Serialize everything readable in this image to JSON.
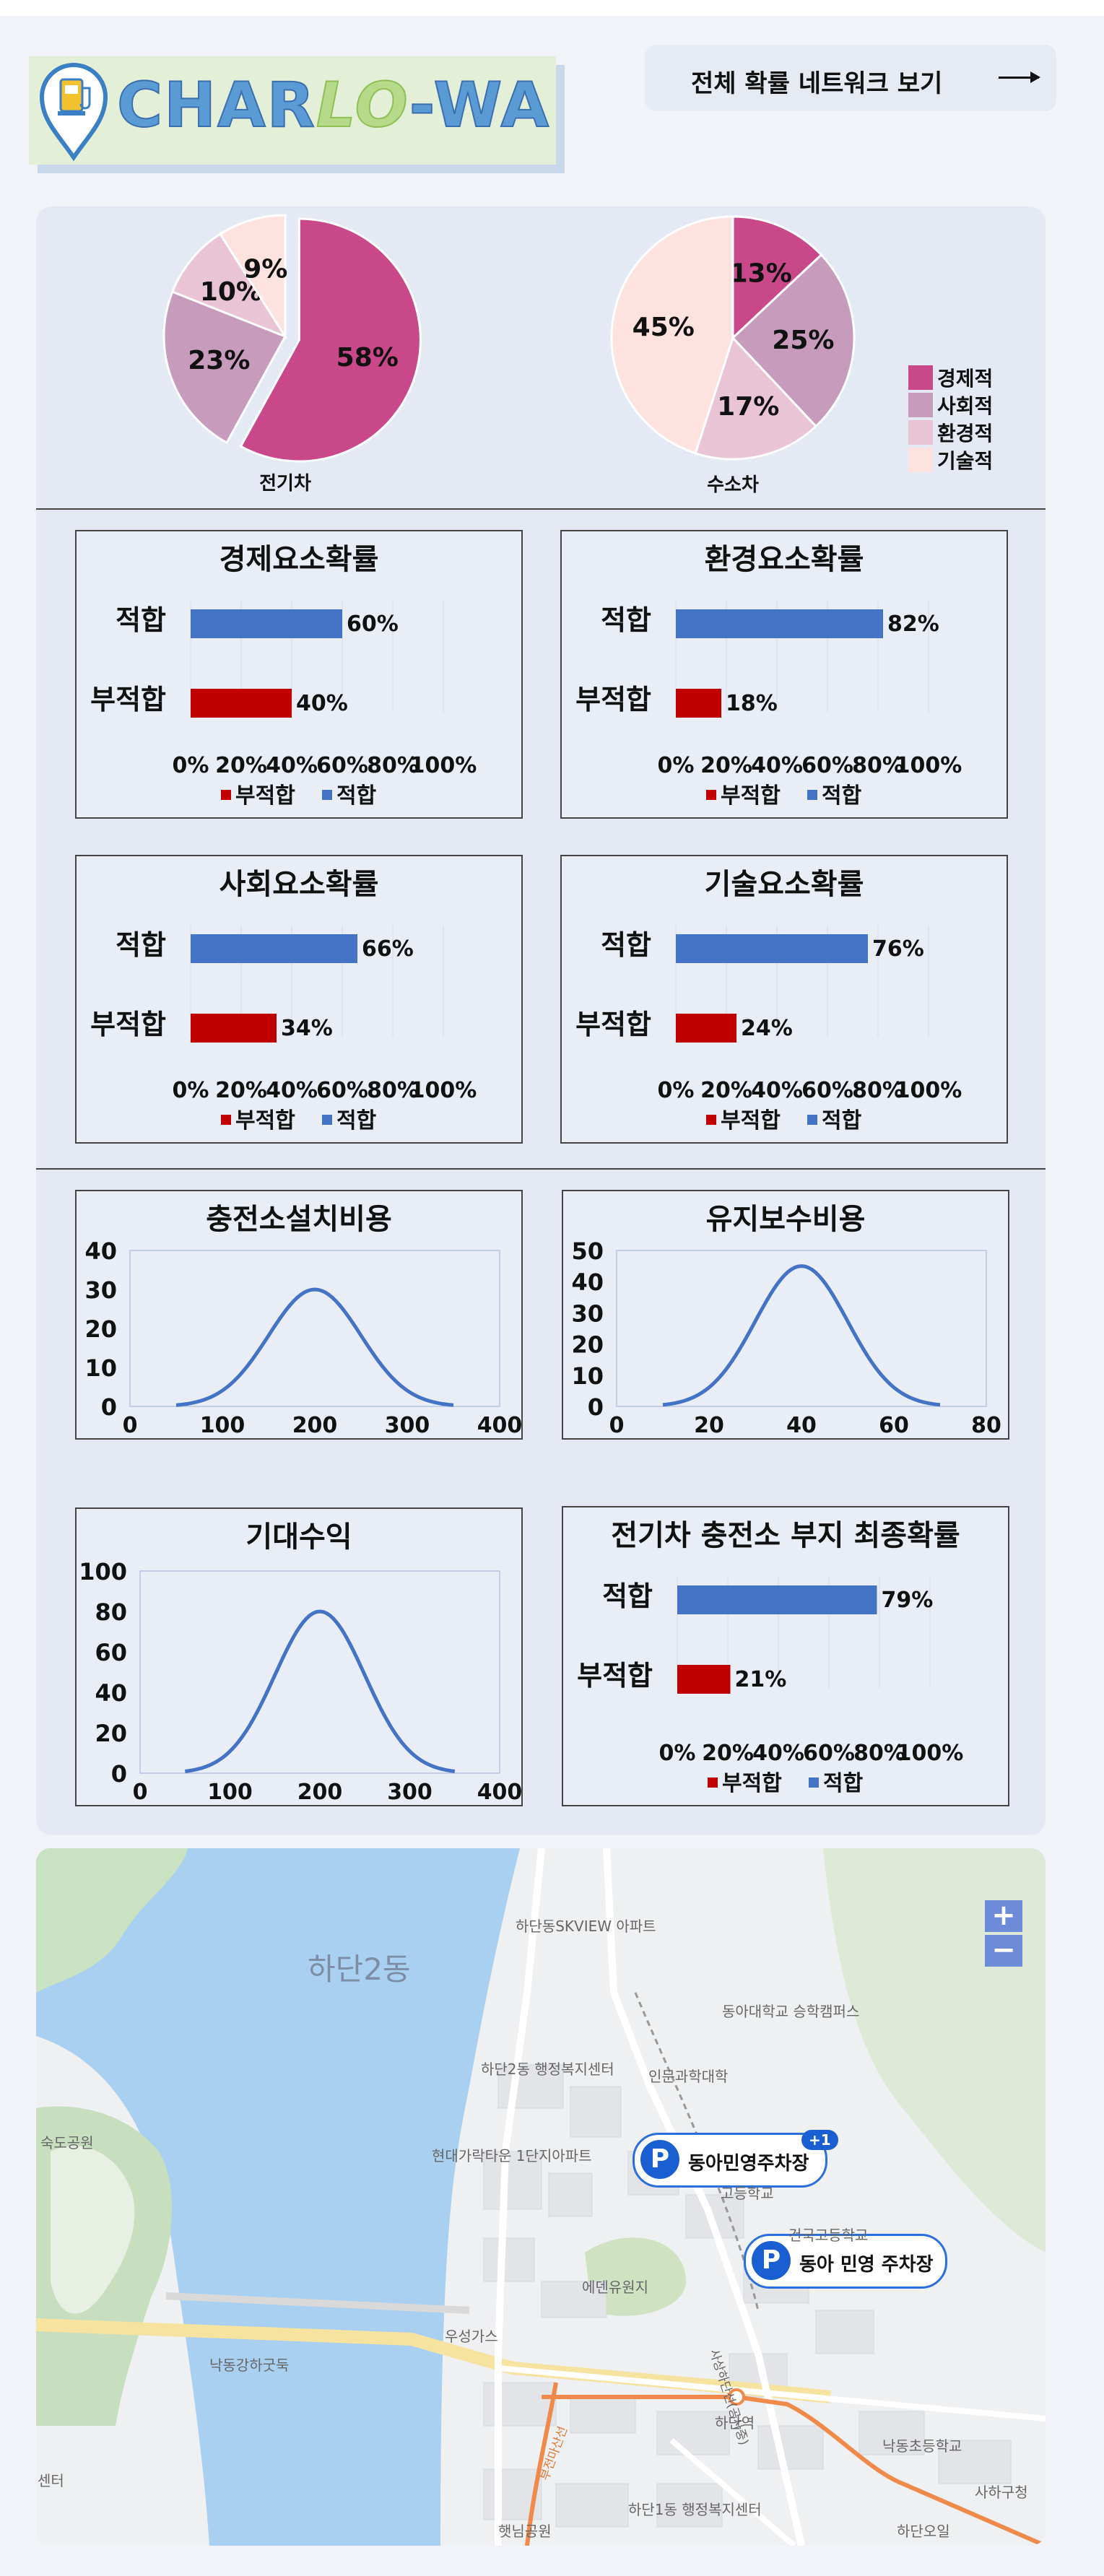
{
  "header": {
    "logo_text_1": "CHAR",
    "logo_text_2": "LO",
    "logo_text_3": "-WA",
    "network_button_label": "전체 확률 네트워크 보기"
  },
  "pies": [
    {
      "label": "전기차",
      "values": [
        58,
        23,
        10,
        9
      ],
      "labels": [
        "58%",
        "23%",
        "10%",
        "9%"
      ]
    },
    {
      "label": "수소차",
      "values": [
        13,
        25,
        17,
        45
      ],
      "labels": [
        "13%",
        "25%",
        "17%",
        "45%"
      ]
    }
  ],
  "pie_legend": {
    "items": [
      "경제적",
      "사회적",
      "환경적",
      "기술적"
    ],
    "colors": [
      "#c9488a",
      "#c79bbb",
      "#e8c4d4",
      "#fde2df"
    ]
  },
  "prob_cards": [
    {
      "title": "경제요소확률",
      "fit": 60,
      "unfit": 40
    },
    {
      "title": "환경요소확률",
      "fit": 82,
      "unfit": 18
    },
    {
      "title": "사회요소확률",
      "fit": 66,
      "unfit": 34
    },
    {
      "title": "기술요소확률",
      "fit": 76,
      "unfit": 24
    },
    {
      "title": "전기차 충전소 부지 최종확률",
      "fit": 79,
      "unfit": 21
    }
  ],
  "bar_labels": {
    "fit": "적합",
    "unfit": "부적합",
    "ticks": [
      "0%",
      "20%",
      "40%",
      "60%",
      "80%",
      "100%"
    ],
    "legend_unfit": "부적합",
    "legend_fit": "적합"
  },
  "curve_cards": [
    {
      "title": "충전소설치비용",
      "xticks": [
        0,
        100,
        200,
        300,
        400
      ],
      "yticks": [
        0,
        10,
        20,
        30,
        40
      ],
      "mean": 200,
      "sd": 50,
      "peak": 30,
      "xmin": 50,
      "xmax": 350
    },
    {
      "title": "유지보수비용",
      "xticks": [
        0,
        20,
        40,
        60,
        80
      ],
      "yticks": [
        0,
        10,
        20,
        30,
        40,
        50
      ],
      "mean": 40,
      "sd": 10,
      "peak": 45,
      "xmin": 10,
      "xmax": 70
    },
    {
      "title": "기대수익",
      "xticks": [
        0,
        100,
        200,
        300,
        400
      ],
      "yticks": [
        0,
        20,
        40,
        60,
        80,
        100
      ],
      "mean": 200,
      "sd": 50,
      "peak": 80,
      "xmin": 50,
      "xmax": 350
    }
  ],
  "chart_data": [
    {
      "type": "pie",
      "title": "전기차",
      "categories": [
        "경제적",
        "사회적",
        "환경적",
        "기술적"
      ],
      "values": [
        58,
        23,
        10,
        9
      ]
    },
    {
      "type": "pie",
      "title": "수소차",
      "categories": [
        "경제적",
        "사회적",
        "환경적",
        "기술적"
      ],
      "values": [
        13,
        25,
        17,
        45
      ]
    },
    {
      "type": "bar",
      "title": "경제요소확률",
      "categories": [
        "적합",
        "부적합"
      ],
      "values": [
        60,
        40
      ]
    },
    {
      "type": "bar",
      "title": "환경요소확률",
      "categories": [
        "적합",
        "부적합"
      ],
      "values": [
        82,
        18
      ]
    },
    {
      "type": "bar",
      "title": "사회요소확률",
      "categories": [
        "적합",
        "부적합"
      ],
      "values": [
        66,
        34
      ]
    },
    {
      "type": "bar",
      "title": "기술요소확률",
      "categories": [
        "적합",
        "부적합"
      ],
      "values": [
        76,
        24
      ]
    },
    {
      "type": "line",
      "title": "충전소설치비용",
      "x": [
        50,
        100,
        150,
        200,
        250,
        300,
        350
      ],
      "y": [
        0.3,
        4,
        18,
        30,
        18,
        4,
        0.3
      ],
      "xlim": [
        0,
        400
      ],
      "ylim": [
        0,
        40
      ]
    },
    {
      "type": "line",
      "title": "유지보수비용",
      "x": [
        10,
        20,
        30,
        40,
        50,
        60,
        70
      ],
      "y": [
        0.5,
        6,
        27,
        45,
        27,
        6,
        0.5
      ],
      "xlim": [
        0,
        80
      ],
      "ylim": [
        0,
        50
      ]
    },
    {
      "type": "line",
      "title": "기대수익",
      "x": [
        50,
        100,
        150,
        200,
        250,
        300,
        350
      ],
      "y": [
        1,
        10,
        48,
        80,
        48,
        10,
        1
      ],
      "xlim": [
        0,
        400
      ],
      "ylim": [
        0,
        100
      ]
    },
    {
      "type": "bar",
      "title": "전기차 충전소 부지 최종확률",
      "categories": [
        "적합",
        "부적합"
      ],
      "values": [
        79,
        21
      ]
    }
  ],
  "map": {
    "zoom_in": "+",
    "zoom_out": "−",
    "district_label": "하단2동",
    "pins": [
      {
        "label": "동아민영주차장",
        "badge": "+1"
      },
      {
        "label": "동아 민영 주차장"
      }
    ],
    "place_labels": [
      "하단동SKVIEW 아파트",
      "동아대학교 승학캠퍼스",
      "인문과학대학",
      "하단2동 행정복지센터",
      "현대가락타운 1단지아파트",
      "고등학교",
      "건국고등학교",
      "에덴유원지",
      "우성가스",
      "낙동강하굿둑",
      "하단역",
      "낙동초등학교",
      "사하구청",
      "하단1동 행정복지센터",
      "하단오일",
      "햇님공원",
      "숙도공원",
      "센터",
      "사상하단선(공사중)",
      "부전마산선"
    ]
  }
}
